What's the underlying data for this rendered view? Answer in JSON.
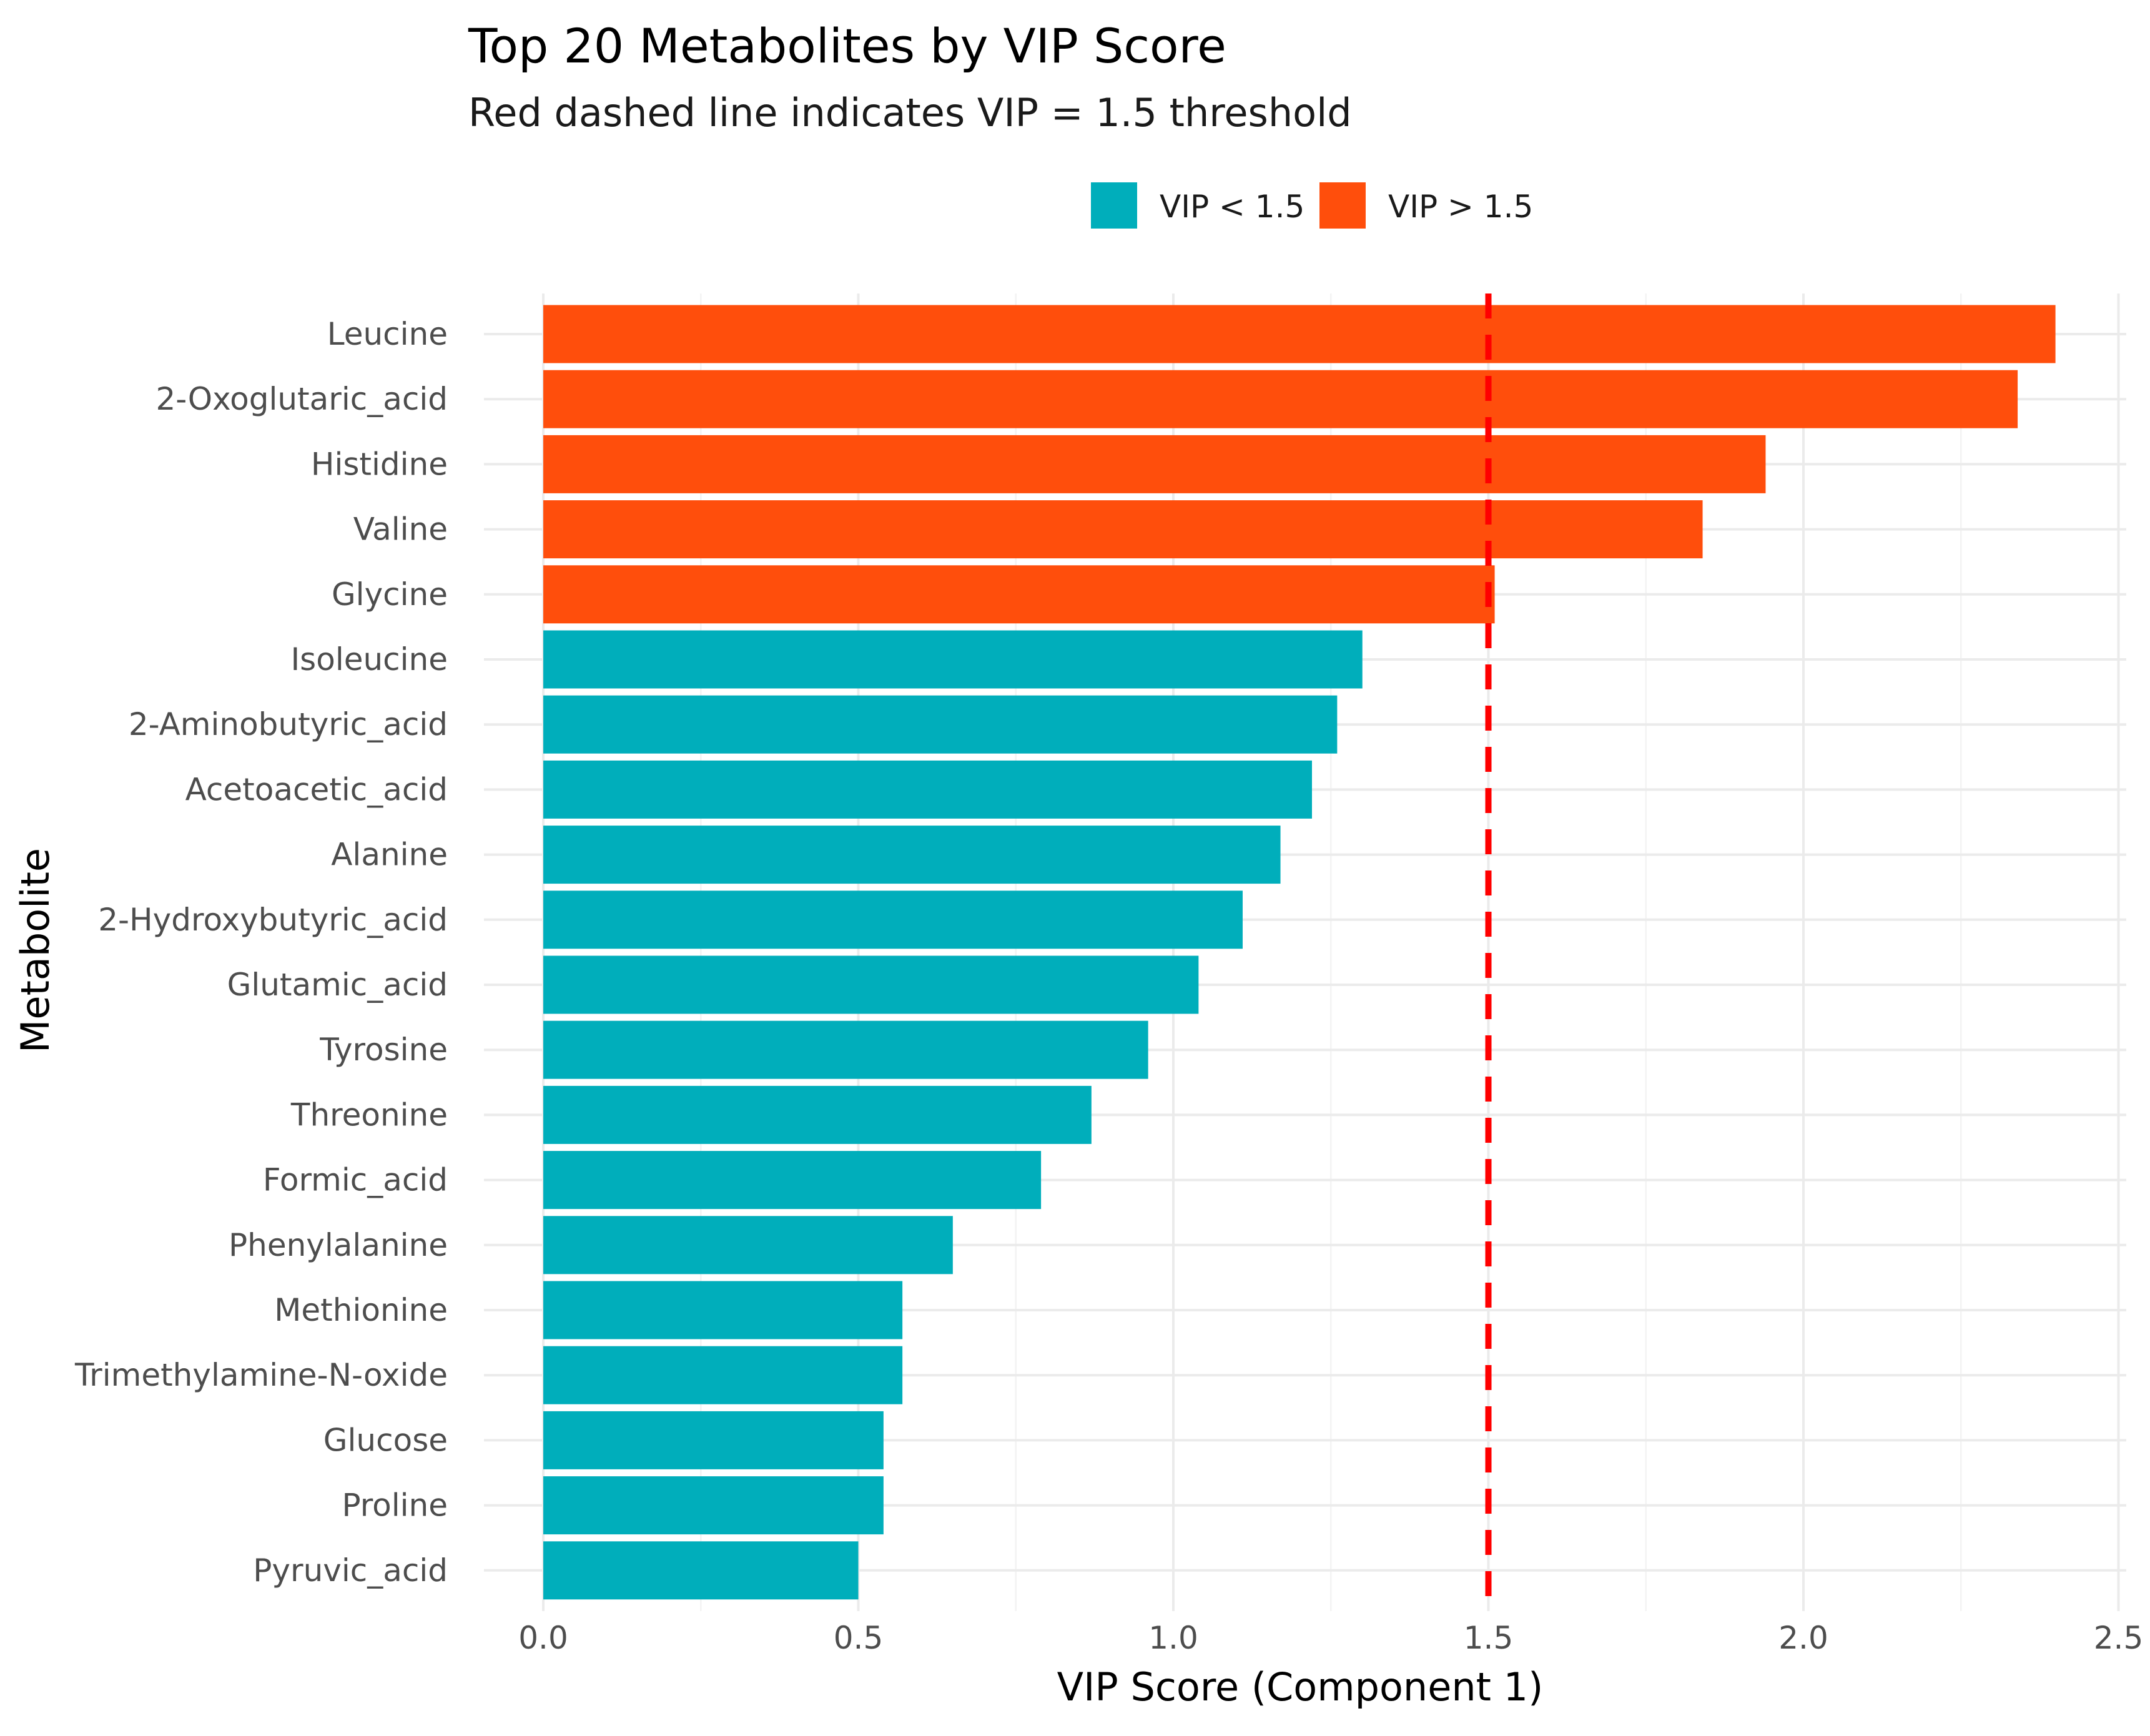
{
  "chart_data": {
    "type": "bar",
    "orientation": "horizontal",
    "title": "Top 20 Metabolites by VIP Score",
    "subtitle": "Red dashed line indicates VIP = 1.5 threshold",
    "xlabel": "VIP Score (Component 1)",
    "ylabel": "Metabolite",
    "xlim": [
      0,
      2.5
    ],
    "x_ticks": [
      "0.0",
      "0.5",
      "1.0",
      "1.5",
      "2.0",
      "2.5"
    ],
    "x_tick_values": [
      0,
      0.5,
      1.0,
      1.5,
      2.0,
      2.5
    ],
    "threshold": 1.5,
    "grid": true,
    "legend_position": "top",
    "legend": [
      {
        "label": "VIP < 1.5",
        "color": "#00AEBB"
      },
      {
        "label": "VIP > 1.5",
        "color": "#FF4E0C"
      }
    ],
    "colors": {
      "below": "#00AEBB",
      "above": "#FF4E0C",
      "threshold_line": "#FF0000"
    },
    "categories": [
      "Leucine",
      "2-Oxoglutaric_acid",
      "Histidine",
      "Valine",
      "Glycine",
      "Isoleucine",
      "2-Aminobutyric_acid",
      "Acetoacetic_acid",
      "Alanine",
      "2-Hydroxybutyric_acid",
      "Glutamic_acid",
      "Tyrosine",
      "Threonine",
      "Formic_acid",
      "Phenylalanine",
      "Methionine",
      "Trimethylamine-N-oxide",
      "Glucose",
      "Proline",
      "Pyruvic_acid"
    ],
    "values": [
      2.4,
      2.34,
      1.94,
      1.84,
      1.51,
      1.3,
      1.26,
      1.22,
      1.17,
      1.11,
      1.04,
      0.96,
      0.87,
      0.79,
      0.65,
      0.57,
      0.57,
      0.54,
      0.54,
      0.5
    ]
  }
}
